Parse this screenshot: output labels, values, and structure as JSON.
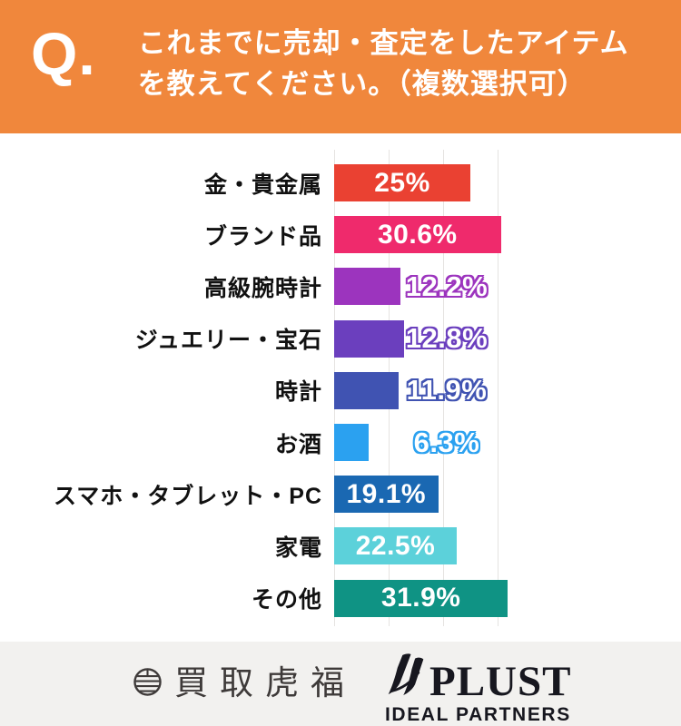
{
  "header": {
    "q_label": "Q.",
    "title_lines": [
      "これまでに売却・査定をしたアイテム",
      "を教えてください。（複数選択可）"
    ],
    "background": "#F0873C",
    "text_color": "#FFFFFF"
  },
  "chart_data": {
    "type": "bar",
    "orientation": "horizontal",
    "categories": [
      "金・貴金属",
      "ブランド品",
      "高級腕時計",
      "ジュエリー・宝石",
      "時計",
      "お酒",
      "スマホ・タブレット・PC",
      "家電",
      "その他"
    ],
    "values": [
      25,
      30.6,
      12.2,
      12.8,
      11.9,
      6.3,
      19.1,
      22.5,
      31.9
    ],
    "value_labels": [
      "25%",
      "30.6%",
      "12.2%",
      "12.8%",
      "11.9%",
      "6.3%",
      "19.1%",
      "22.5%",
      "31.9%"
    ],
    "bar_colors": [
      "#EA4132",
      "#EF2A6C",
      "#9C34BE",
      "#6B3FBE",
      "#4053B2",
      "#2BA1F0",
      "#1A68B2",
      "#5CD1DA",
      "#0F9384"
    ],
    "label_inside": [
      true,
      true,
      false,
      false,
      false,
      false,
      true,
      true,
      true
    ],
    "xlim": [
      0,
      33
    ],
    "gridlines": [
      0,
      10,
      20,
      30
    ],
    "grid": true,
    "legend": false,
    "plot_background": "#FFFFFF",
    "gridline_color": "#E5E3E1"
  },
  "footer": {
    "background": "#F2F1EF",
    "torafuku": {
      "icon": "striped-circle-emblem",
      "text": "買取虎福",
      "color": "#3E3A39"
    },
    "plust": {
      "icon": "brush-stroke",
      "name": "PLUST",
      "subtitle": "IDEAL PARTNERS",
      "color": "#17171F"
    }
  }
}
